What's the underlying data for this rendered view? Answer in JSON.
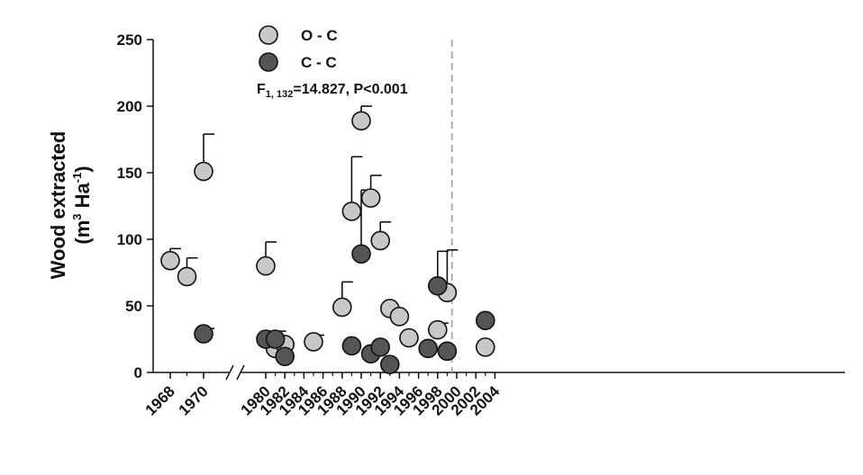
{
  "chart_data": {
    "type": "scatter",
    "ylabel_line1": "Wood extracted",
    "ylabel_unit": "m",
    "ylabel_unit_exp": "3",
    "ylabel_unit2": " Ha",
    "ylabel_unit2_exp": "-1",
    "ylim": [
      0,
      250
    ],
    "yticks": [
      0,
      50,
      100,
      150,
      200,
      250
    ],
    "xticks_left": [
      "1968",
      "1970"
    ],
    "xticks_right": [
      "1980",
      "1982",
      "1984",
      "1986",
      "1988",
      "1990",
      "1992",
      "1994",
      "1996",
      "1998",
      "2000",
      "2002",
      "2004"
    ],
    "axis_break_between": [
      1970,
      1980
    ],
    "reference_line_x": 1999.5,
    "stat": {
      "prefix": "F",
      "subscript": "1, 132",
      "suffix": "=14.827, P<0.001"
    },
    "series": [
      {
        "name": "O - C",
        "color": "#c8c8c8",
        "points": [
          {
            "x": 1968,
            "y": 84,
            "err": 9
          },
          {
            "x": 1969,
            "y": 72,
            "err": 14
          },
          {
            "x": 1970,
            "y": 151,
            "err": 28
          },
          {
            "x": 1980,
            "y": 80,
            "err": 18
          },
          {
            "x": 1981,
            "y": 18,
            "err": 0
          },
          {
            "x": 1982,
            "y": 21,
            "err": 0
          },
          {
            "x": 1985,
            "y": 23,
            "err": 5
          },
          {
            "x": 1988,
            "y": 49,
            "err": 19
          },
          {
            "x": 1989,
            "y": 121,
            "err": 41
          },
          {
            "x": 1990,
            "y": 189,
            "err": 11
          },
          {
            "x": 1991,
            "y": 131,
            "err": 17
          },
          {
            "x": 1992,
            "y": 99,
            "err": 14
          },
          {
            "x": 1993,
            "y": 48,
            "err": 0
          },
          {
            "x": 1994,
            "y": 42,
            "err": 0
          },
          {
            "x": 1995,
            "y": 26,
            "err": 0
          },
          {
            "x": 1998,
            "y": 32,
            "err": 5
          },
          {
            "x": 1999,
            "y": 60,
            "err": 32
          },
          {
            "x": 2003,
            "y": 19,
            "err": 0
          }
        ]
      },
      {
        "name": "C - C",
        "color": "#555555",
        "points": [
          {
            "x": 1970,
            "y": 29,
            "err": 4
          },
          {
            "x": 1980,
            "y": 25,
            "err": 6
          },
          {
            "x": 1981,
            "y": 25,
            "err": 6
          },
          {
            "x": 1982,
            "y": 12,
            "err": 0
          },
          {
            "x": 1989,
            "y": 20,
            "err": 0
          },
          {
            "x": 1990,
            "y": 89,
            "err": 48
          },
          {
            "x": 1991,
            "y": 14,
            "err": 0
          },
          {
            "x": 1992,
            "y": 19,
            "err": 0
          },
          {
            "x": 1993,
            "y": 6,
            "err": 0
          },
          {
            "x": 1997,
            "y": 18,
            "err": 0
          },
          {
            "x": 1998,
            "y": 65,
            "err": 26
          },
          {
            "x": 1999,
            "y": 16,
            "err": 0
          },
          {
            "x": 2003,
            "y": 39,
            "err": 0
          }
        ]
      }
    ]
  }
}
